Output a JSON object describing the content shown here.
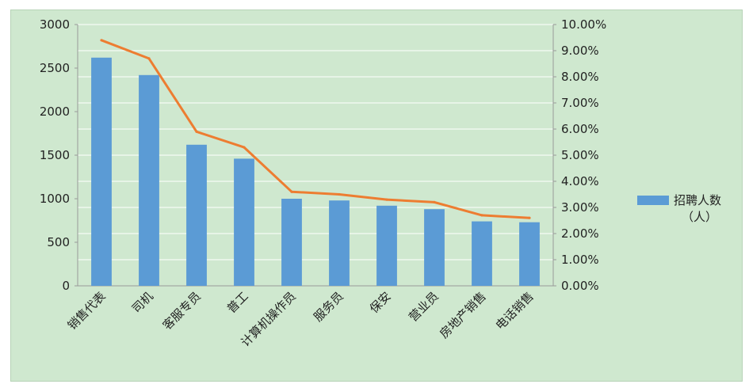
{
  "chart_data": {
    "type": "bar",
    "title": "",
    "xlabel": "",
    "ylabel": "",
    "categories": [
      "销售代表",
      "司机",
      "客服专员",
      "普工",
      "计算机操作员",
      "服务员",
      "保安",
      "营业员",
      "房地产销售",
      "电话销售"
    ],
    "series": [
      {
        "name": "招聘人数（人）",
        "kind": "bar",
        "axis": "left",
        "color": "#5b9bd5",
        "values": [
          2620,
          2420,
          1620,
          1460,
          1000,
          980,
          920,
          880,
          740,
          730
        ]
      },
      {
        "kind": "line",
        "axis": "right",
        "color": "#ed7d31",
        "values": [
          0.094,
          0.087,
          0.059,
          0.053,
          0.036,
          0.035,
          0.033,
          0.032,
          0.027,
          0.026
        ]
      }
    ],
    "ylim": [
      0,
      3000
    ],
    "yticks": [
      "0",
      "500",
      "1000",
      "1500",
      "2000",
      "2500",
      "3000"
    ],
    "y2lim": [
      0,
      0.1
    ],
    "y2ticks": [
      "0.00%",
      "1.00%",
      "2.00%",
      "3.00%",
      "4.00%",
      "5.00%",
      "6.00%",
      "7.00%",
      "8.00%",
      "9.00%",
      "10.00%"
    ],
    "grid": true,
    "legend": {
      "position": "right",
      "lines": [
        "招聘人数",
        "（人）"
      ]
    }
  },
  "colors": {
    "background": "#cfe8cf",
    "grid": "#ffffff",
    "bar": "#5b9bd5",
    "line": "#ed7d31"
  }
}
